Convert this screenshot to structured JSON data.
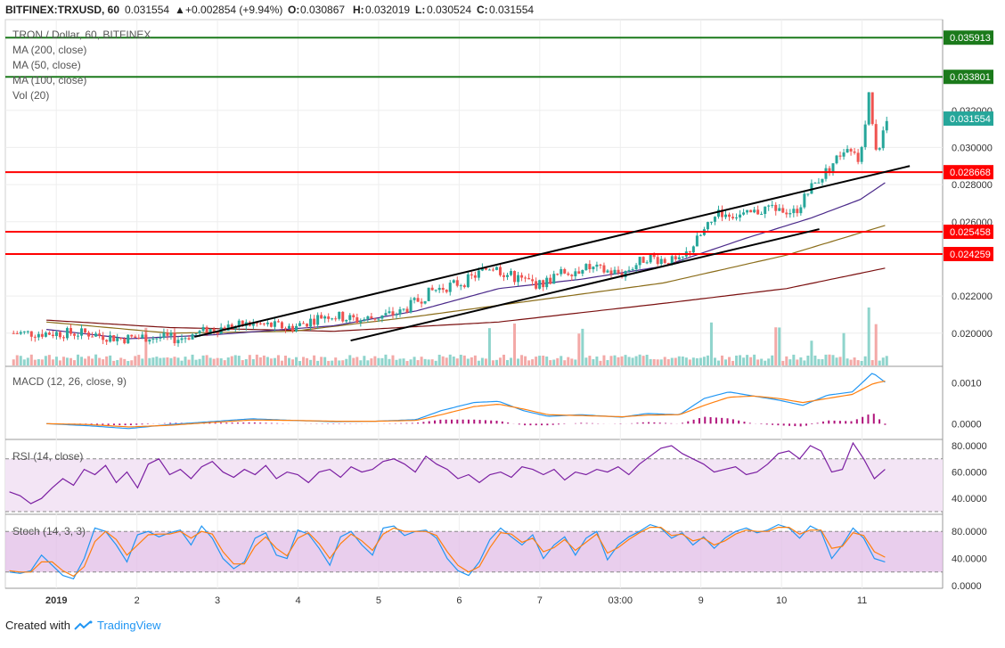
{
  "header": {
    "symbol": "BITFINEX:TRXUSD, 60",
    "last": "0.031554",
    "change": "+0.002854 (+9.94%)",
    "o_label": "O:",
    "o": "0.030867",
    "h_label": "H:",
    "h": "0.032019",
    "l_label": "L:",
    "l": "0.030524",
    "c_label": "C:",
    "c": "0.031554"
  },
  "legend": [
    "TRON / Dollar, 60, BITFINEX",
    "MA (200, close)",
    "MA (50, close)",
    "MA (100, close)",
    "Vol (20)"
  ],
  "footer": {
    "created_with": "Created with",
    "brand": "TradingView"
  },
  "colors": {
    "up": "#26a69a",
    "down": "#ef5350",
    "support": "#ff0000",
    "resistance": "#1b7a1b",
    "trend": "#000000",
    "ma200": "#7b1010",
    "ma50": "#4b2a8a",
    "ma100": "#8b6d1a",
    "macd": "#2196f3",
    "signal": "#ff7f0e",
    "hist": "#b0127a",
    "osc": "#7b1fa2"
  },
  "chart_data": [
    {
      "type": "candlestick",
      "title": "TRON / Dollar, 60, BITFINEX",
      "x_ticks": [
        "2019",
        "2",
        "3",
        "4",
        "5",
        "6",
        "7",
        "03:00",
        "9",
        "10",
        "11"
      ],
      "y_ticks": [
        "0.020000",
        "0.022000",
        "0.026000",
        "0.028000",
        "0.030000",
        "0.032000"
      ],
      "ylim": [
        0.0185,
        0.0365
      ],
      "price_tags": [
        {
          "value": "0.035913",
          "color": "resistance"
        },
        {
          "value": "0.033801",
          "color": "resistance"
        },
        {
          "value": "0.031554",
          "color": "up"
        },
        {
          "value": "0.028668",
          "color": "support"
        },
        {
          "value": "0.025458",
          "color": "support"
        },
        {
          "value": "0.024259",
          "color": "support"
        }
      ],
      "horizontal_levels": [
        {
          "value": 0.035913,
          "color": "resistance"
        },
        {
          "value": 0.033801,
          "color": "resistance"
        },
        {
          "value": 0.028668,
          "color": "support"
        },
        {
          "value": 0.025458,
          "color": "support"
        },
        {
          "value": 0.024259,
          "color": "support"
        }
      ],
      "trendlines": [
        {
          "from": [
            2.3,
            0.0198
          ],
          "to": [
            11.0,
            0.029
          ]
        },
        {
          "from": [
            4.2,
            0.0196
          ],
          "to": [
            9.9,
            0.0256
          ]
        }
      ],
      "price_anchors": [
        [
          1.0,
          0.02
        ],
        [
          1.4,
          0.0197
        ],
        [
          1.7,
          0.0198
        ],
        [
          2.1,
          0.0197
        ],
        [
          2.5,
          0.0202
        ],
        [
          3.0,
          0.0205
        ],
        [
          3.5,
          0.0203
        ],
        [
          3.9,
          0.021
        ],
        [
          4.3,
          0.0207
        ],
        [
          4.8,
          0.0211
        ],
        [
          5.2,
          0.0223
        ],
        [
          5.6,
          0.0228
        ],
        [
          5.9,
          0.0236
        ],
        [
          6.2,
          0.023
        ],
        [
          6.5,
          0.0226
        ],
        [
          6.8,
          0.0233
        ],
        [
          7.1,
          0.0235
        ],
        [
          7.5,
          0.0232
        ],
        [
          7.8,
          0.0241
        ],
        [
          8.2,
          0.0238
        ],
        [
          8.5,
          0.0255
        ],
        [
          8.7,
          0.0265
        ],
        [
          9.0,
          0.0263
        ],
        [
          9.3,
          0.0268
        ],
        [
          9.6,
          0.0265
        ],
        [
          9.8,
          0.0278
        ],
        [
          10.0,
          0.0288
        ],
        [
          10.2,
          0.0299
        ],
        [
          10.4,
          0.0292
        ],
        [
          10.5,
          0.033
        ],
        [
          10.6,
          0.0295
        ],
        [
          10.7,
          0.0316
        ]
      ],
      "ma": [
        {
          "name": "MA (200, close)",
          "color": "ma200",
          "points": [
            [
              0.5,
              0.0207
            ],
            [
              2.0,
              0.0203
            ],
            [
              4.0,
              0.0201
            ],
            [
              6.0,
              0.0206
            ],
            [
              8.0,
              0.0216
            ],
            [
              9.5,
              0.0224
            ],
            [
              10.7,
              0.0235
            ]
          ]
        },
        {
          "name": "MA (100, close)",
          "color": "ma100",
          "points": [
            [
              0.5,
              0.0206
            ],
            [
              2.0,
              0.02
            ],
            [
              3.5,
              0.0201
            ],
            [
              5.0,
              0.0209
            ],
            [
              6.5,
              0.0218
            ],
            [
              8.0,
              0.0227
            ],
            [
              9.5,
              0.0242
            ],
            [
              10.7,
              0.0258
            ]
          ]
        },
        {
          "name": "MA (50, close)",
          "color": "ma50",
          "points": [
            [
              0.5,
              0.0202
            ],
            [
              1.5,
              0.0197
            ],
            [
              2.5,
              0.0199
            ],
            [
              4.0,
              0.0204
            ],
            [
              5.0,
              0.0212
            ],
            [
              6.0,
              0.0224
            ],
            [
              7.0,
              0.0229
            ],
            [
              8.0,
              0.0236
            ],
            [
              9.0,
              0.0251
            ],
            [
              9.8,
              0.0262
            ],
            [
              10.4,
              0.0272
            ],
            [
              10.7,
              0.0281
            ]
          ]
        }
      ],
      "volume_spikes": [
        [
          1.7,
          0.9
        ],
        [
          5.9,
          0.9
        ],
        [
          6.2,
          1.0
        ],
        [
          7.0,
          0.8
        ],
        [
          8.6,
          1.0
        ],
        [
          9.4,
          0.7
        ],
        [
          9.8,
          0.6
        ],
        [
          10.2,
          0.8
        ],
        [
          10.5,
          1.1
        ],
        [
          10.6,
          1.0
        ]
      ]
    },
    {
      "type": "line",
      "name": "MACD (12, 26, close, 9)",
      "y_ticks": [
        "0.0010",
        "0.0000"
      ],
      "ylim": [
        -0.0003,
        0.0013
      ],
      "macd": [
        [
          0.5,
          0.0
        ],
        [
          1.0,
          -5e-05
        ],
        [
          1.5,
          -0.00012
        ],
        [
          2.0,
          -2e-05
        ],
        [
          2.5,
          5e-05
        ],
        [
          3.0,
          0.00012
        ],
        [
          3.5,
          8e-05
        ],
        [
          4.0,
          5e-05
        ],
        [
          4.5,
          6e-05
        ],
        [
          5.0,
          0.0001
        ],
        [
          5.3,
          0.00032
        ],
        [
          5.7,
          0.00052
        ],
        [
          6.0,
          0.00055
        ],
        [
          6.3,
          0.00032
        ],
        [
          6.6,
          0.00018
        ],
        [
          7.0,
          0.00022
        ],
        [
          7.5,
          0.00016
        ],
        [
          7.8,
          0.00025
        ],
        [
          8.2,
          0.00022
        ],
        [
          8.5,
          0.00062
        ],
        [
          8.8,
          0.00078
        ],
        [
          9.1,
          0.00068
        ],
        [
          9.4,
          0.00058
        ],
        [
          9.7,
          0.00045
        ],
        [
          10.0,
          0.0007
        ],
        [
          10.3,
          0.00078
        ],
        [
          10.55,
          0.00125
        ],
        [
          10.7,
          0.00102
        ]
      ],
      "signal": [
        [
          0.5,
          0.0
        ],
        [
          1.0,
          -2e-05
        ],
        [
          1.5,
          -8e-05
        ],
        [
          2.0,
          -4e-05
        ],
        [
          2.5,
          3e-05
        ],
        [
          3.0,
          9e-05
        ],
        [
          3.5,
          8e-05
        ],
        [
          4.0,
          6e-05
        ],
        [
          4.5,
          6e-05
        ],
        [
          5.0,
          8e-05
        ],
        [
          5.3,
          0.00022
        ],
        [
          5.7,
          0.00042
        ],
        [
          6.0,
          0.00048
        ],
        [
          6.3,
          0.00036
        ],
        [
          6.6,
          0.00022
        ],
        [
          7.0,
          0.0002
        ],
        [
          7.5,
          0.00017
        ],
        [
          7.8,
          0.00021
        ],
        [
          8.2,
          0.00022
        ],
        [
          8.5,
          0.00045
        ],
        [
          8.8,
          0.00065
        ],
        [
          9.1,
          0.00068
        ],
        [
          9.4,
          0.00062
        ],
        [
          9.7,
          0.00052
        ],
        [
          10.0,
          0.00062
        ],
        [
          10.3,
          0.00072
        ],
        [
          10.55,
          0.00098
        ],
        [
          10.7,
          0.00105
        ]
      ]
    },
    {
      "type": "line",
      "name": "RSI (14, close)",
      "y_ticks": [
        "80.0000",
        "60.0000",
        "40.0000"
      ],
      "ylim": [
        30,
        82
      ],
      "bands": [
        70,
        30
      ],
      "values": [
        45,
        42,
        36,
        40,
        48,
        55,
        50,
        62,
        58,
        65,
        52,
        60,
        48,
        66,
        70,
        58,
        62,
        55,
        64,
        68,
        60,
        56,
        62,
        58,
        65,
        55,
        60,
        58,
        52,
        60,
        62,
        56,
        64,
        60,
        62,
        68,
        70,
        66,
        60,
        72,
        66,
        62,
        55,
        58,
        52,
        58,
        60,
        56,
        64,
        62,
        58,
        62,
        54,
        60,
        58,
        62,
        60,
        64,
        58,
        66,
        72,
        78,
        80,
        74,
        70,
        66,
        60,
        62,
        64,
        58,
        60,
        66,
        74,
        76,
        70,
        80,
        76,
        60,
        62,
        82,
        70,
        55,
        62
      ]
    },
    {
      "type": "line",
      "name": "Stoch (14, 3, 3)",
      "y_ticks": [
        "80.0000",
        "40.0000",
        "0.0000"
      ],
      "ylim": [
        0,
        100
      ],
      "bands": [
        80,
        20
      ],
      "k": [
        20,
        18,
        22,
        45,
        30,
        15,
        10,
        40,
        85,
        80,
        60,
        35,
        75,
        80,
        72,
        78,
        82,
        60,
        88,
        70,
        40,
        25,
        35,
        70,
        78,
        45,
        40,
        82,
        76,
        55,
        30,
        72,
        80,
        60,
        45,
        85,
        88,
        74,
        80,
        82,
        70,
        40,
        22,
        15,
        35,
        68,
        85,
        72,
        60,
        75,
        40,
        60,
        72,
        45,
        70,
        80,
        38,
        60,
        72,
        80,
        90,
        85,
        70,
        78,
        60,
        72,
        55,
        70,
        80,
        85,
        78,
        82,
        90,
        85,
        70,
        88,
        80,
        40,
        60,
        85,
        70,
        40,
        35
      ],
      "d": [
        22,
        20,
        20,
        35,
        35,
        22,
        14,
        28,
        65,
        80,
        68,
        45,
        60,
        75,
        76,
        76,
        80,
        70,
        80,
        76,
        50,
        32,
        32,
        58,
        72,
        55,
        44,
        70,
        78,
        62,
        40,
        62,
        76,
        66,
        52,
        76,
        85,
        80,
        80,
        80,
        74,
        50,
        30,
        20,
        28,
        56,
        78,
        76,
        64,
        70,
        50,
        56,
        68,
        52,
        64,
        76,
        48,
        56,
        68,
        78,
        86,
        86,
        74,
        76,
        66,
        70,
        60,
        66,
        76,
        82,
        80,
        80,
        86,
        86,
        76,
        82,
        82,
        55,
        58,
        78,
        74,
        50,
        42
      ]
    }
  ]
}
